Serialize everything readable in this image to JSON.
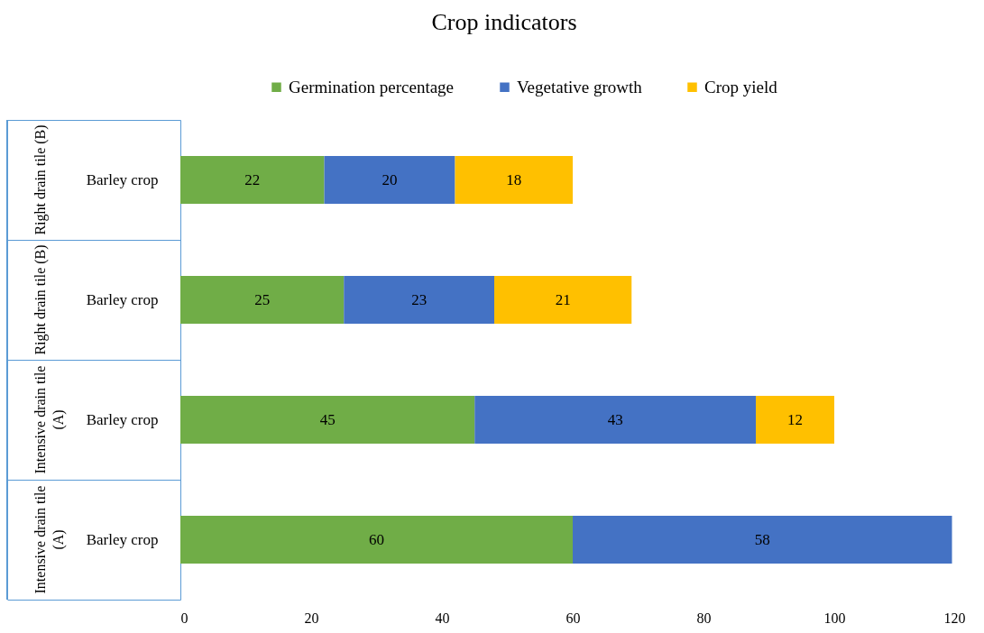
{
  "chart_data": {
    "type": "bar",
    "orientation": "horizontal",
    "stacked": true,
    "title": "Crop indicators",
    "categories": [
      "Barley crop",
      "Barley crop",
      "Barley crop",
      "Barley crop"
    ],
    "annotations": [
      "Right drain tile (B)",
      "Right drain tile (B)",
      "Intensive drain tile (A)",
      "Intensive drain tile (A)"
    ],
    "series": [
      {
        "name": "Germination percentage",
        "color": "#70ad47",
        "values": [
          22,
          25,
          45,
          60
        ]
      },
      {
        "name": "Vegetative growth",
        "color": "#4472c4",
        "values": [
          20,
          23,
          43,
          58
        ]
      },
      {
        "name": "Crop yield",
        "color": "#ffc000",
        "values": [
          18,
          21,
          12,
          null
        ]
      }
    ],
    "xlim": [
      0,
      120
    ],
    "xticks": [
      0,
      20,
      40,
      60,
      80,
      100,
      120
    ],
    "data_labels": true,
    "legend": "top",
    "grid": false
  }
}
